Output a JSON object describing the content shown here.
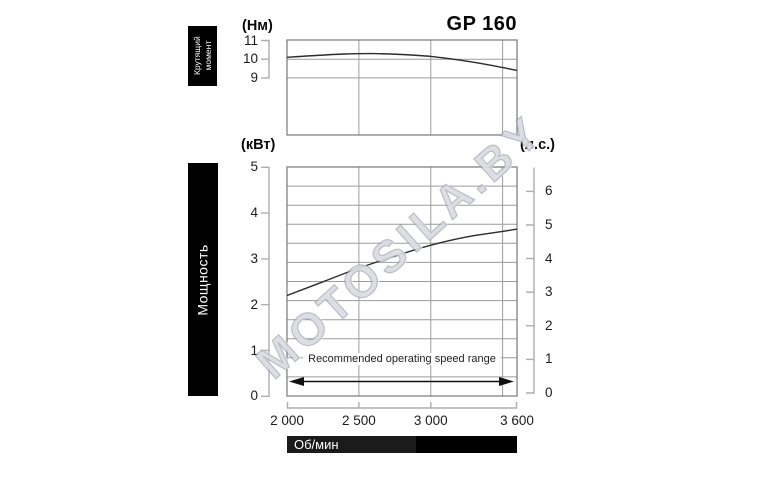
{
  "title": "GP 160",
  "watermark": "MOTOSILA.BY",
  "colors": {
    "curve": "#2b2b2b",
    "grid": "#9c9c9c",
    "plot_border": "#777777",
    "axis_bracket": "#adadad",
    "label_bg": "#000000",
    "label_fg": "#ffffff",
    "watermark_color": "#c8ccd4"
  },
  "torque_section": {
    "side_label_line1": "Крутящий",
    "side_label_line2": "момент",
    "unit": "(Нм)",
    "y_ticks": [
      "11",
      "10",
      "9"
    ]
  },
  "power_section": {
    "side_label": "Мощность",
    "unit_left": "(кВт)",
    "unit_right": "(л.с.)",
    "y_ticks_left": [
      "5",
      "4",
      "3",
      "2",
      "1",
      "0"
    ],
    "y_ticks_right": [
      "6",
      "5",
      "4",
      "3",
      "2",
      "1",
      "0"
    ],
    "annotation": "Recommended operating speed range"
  },
  "x_axis": {
    "tick_labels": [
      "2 000",
      "2 500",
      "3 000",
      "3 600"
    ],
    "tick_values": [
      2000,
      2500,
      3000,
      3600
    ],
    "label": "Об/мин"
  },
  "chart_data": [
    {
      "type": "line",
      "name": "torque",
      "title": "GP 160",
      "xlabel": "Об/мин",
      "ylabel": "(Нм)",
      "x": [
        2000,
        2200,
        2400,
        2600,
        2800,
        3000,
        3200,
        3400,
        3600
      ],
      "values": [
        10.1,
        10.2,
        10.28,
        10.3,
        10.25,
        10.15,
        9.95,
        9.7,
        9.4
      ],
      "ylim": [
        9,
        11
      ],
      "y_gridlines": [
        10,
        9
      ],
      "x_gridlines": [
        2500,
        3000,
        3500
      ],
      "xlim": [
        2000,
        3600
      ],
      "grid": true,
      "legend": false
    },
    {
      "type": "line",
      "name": "power",
      "title": "GP 160",
      "xlabel": "Об/мин",
      "ylabel": "(кВт)",
      "ylabel_right": "(л.с.)",
      "x": [
        2000,
        2250,
        2500,
        2750,
        3000,
        3250,
        3500,
        3600
      ],
      "values": [
        2.2,
        2.5,
        2.8,
        3.06,
        3.3,
        3.48,
        3.6,
        3.65
      ],
      "ylim_left": [
        0,
        5
      ],
      "ylim_right": [
        0,
        6.8
      ],
      "x_gridlines": [
        2500,
        3000,
        3500
      ],
      "xlim": [
        2000,
        3600
      ],
      "annotation": "Recommended operating speed range",
      "annotation_range": [
        2000,
        3600
      ],
      "grid": true,
      "legend": false
    }
  ]
}
